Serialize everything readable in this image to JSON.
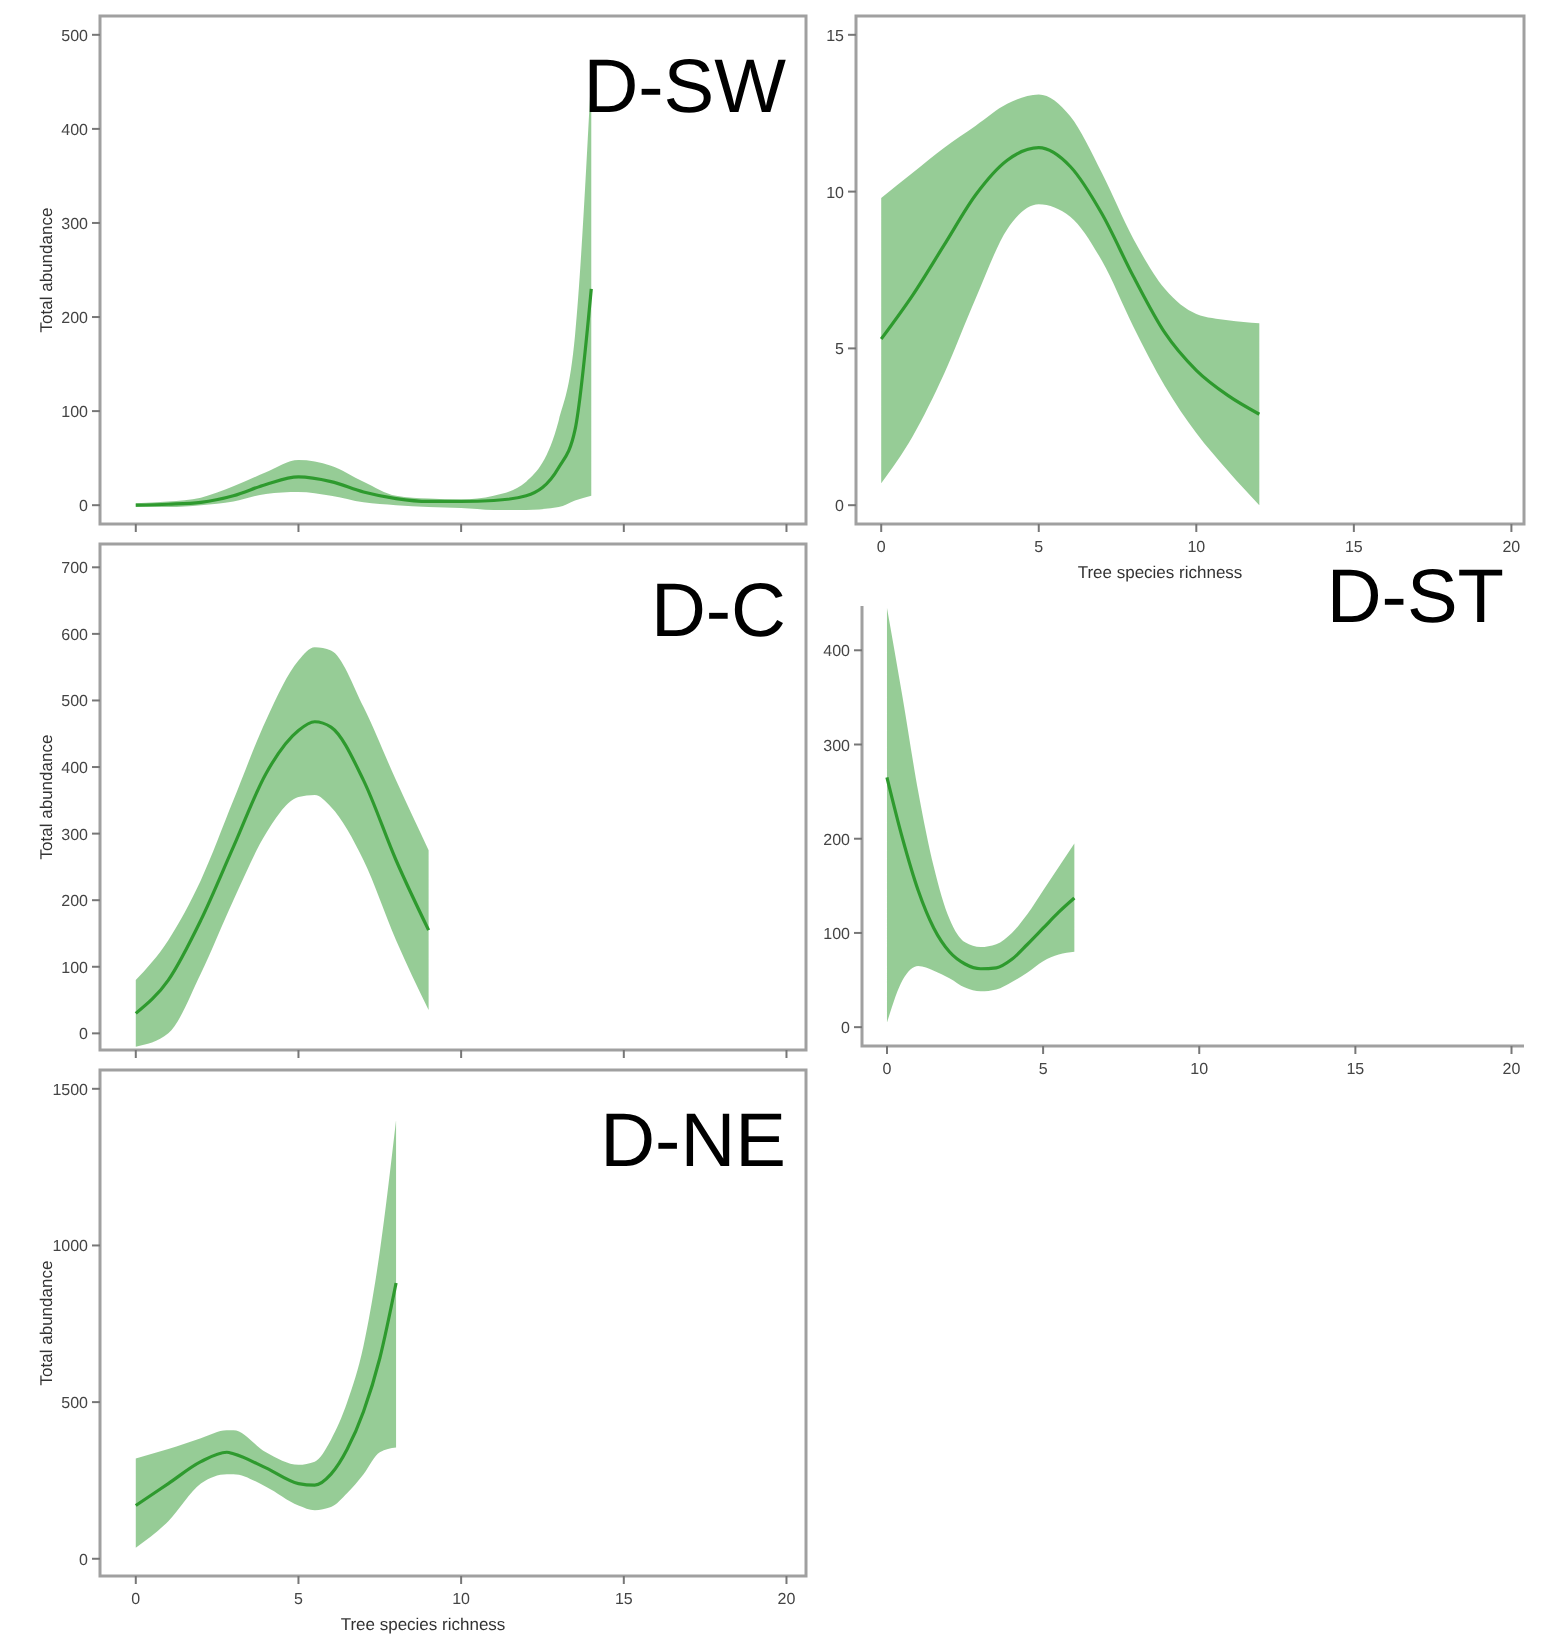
{
  "chart_data": [
    {
      "type": "line",
      "title": "D-SW",
      "ylabel": "Total abundance",
      "xlim": [
        -1.1,
        20.6
      ],
      "ylim": [
        -20,
        520
      ],
      "xticks": [
        {
          "value": 0,
          "label": null
        },
        {
          "value": 5,
          "label": null
        },
        {
          "value": 10,
          "label": null
        },
        {
          "value": 15,
          "label": null
        },
        {
          "value": 20,
          "label": null
        }
      ],
      "yticks": [
        0,
        100,
        200,
        300,
        400,
        500
      ],
      "tick_labels": "y",
      "grid": false,
      "series": [
        {
          "color": "#2e9a2e",
          "x": [
            0,
            1,
            2,
            3,
            4,
            5,
            6,
            7,
            8,
            9,
            10,
            11,
            12,
            13,
            13.5,
            14
          ],
          "values": [
            0,
            1,
            3,
            10,
            22,
            30,
            25,
            14,
            7,
            4,
            4,
            5,
            10,
            40,
            80,
            230
          ],
          "upper": [
            2,
            4,
            8,
            20,
            35,
            48,
            42,
            25,
            10,
            7,
            6,
            10,
            25,
            90,
            180,
            460
          ],
          "lower": [
            -2,
            -2,
            0,
            4,
            12,
            14,
            10,
            3,
            0,
            -2,
            -3,
            -5,
            -5,
            -2,
            5,
            10
          ]
        }
      ]
    },
    {
      "type": "line",
      "xlabel": "Tree species richness",
      "xlim": [
        -0.8,
        20.4
      ],
      "ylim": [
        -0.6,
        15.6
      ],
      "xticks": [
        0,
        5,
        10,
        15,
        20
      ],
      "yticks": [
        0,
        5,
        10,
        15
      ],
      "grid": false,
      "series": [
        {
          "color": "#2e9a2e",
          "x": [
            0,
            1,
            2,
            3,
            4,
            5,
            6,
            7,
            8,
            9,
            10,
            11,
            12
          ],
          "values": [
            5.3,
            6.7,
            8.3,
            9.9,
            11.0,
            11.4,
            10.8,
            9.3,
            7.3,
            5.5,
            4.3,
            3.5,
            2.9
          ],
          "upper": [
            9.8,
            10.6,
            11.4,
            12.1,
            12.8,
            13.1,
            12.4,
            10.6,
            8.5,
            6.9,
            6.1,
            5.9,
            5.8
          ],
          "lower": [
            0.7,
            2.2,
            4.2,
            6.6,
            8.8,
            9.6,
            9.2,
            7.8,
            5.7,
            3.8,
            2.3,
            1.1,
            0
          ]
        }
      ]
    },
    {
      "type": "line",
      "title": "D-C",
      "ylabel": "Total abundance",
      "xlim": [
        -1.1,
        20.6
      ],
      "ylim": [
        -25,
        735
      ],
      "xticks": [
        {
          "value": 0,
          "label": null
        },
        {
          "value": 5,
          "label": null
        },
        {
          "value": 10,
          "label": null
        },
        {
          "value": 15,
          "label": null
        },
        {
          "value": 20,
          "label": null
        }
      ],
      "yticks": [
        0,
        100,
        200,
        300,
        400,
        500,
        600,
        700
      ],
      "tick_labels": "y",
      "grid": false,
      "series": [
        {
          "color": "#2e9a2e",
          "x": [
            0,
            1,
            2,
            3,
            4,
            5,
            5.5,
            6,
            7,
            8,
            9
          ],
          "values": [
            30,
            80,
            170,
            280,
            390,
            455,
            468,
            460,
            380,
            260,
            155
          ],
          "upper": [
            80,
            140,
            230,
            350,
            470,
            560,
            580,
            575,
            490,
            380,
            275
          ],
          "lower": [
            -20,
            0,
            90,
            200,
            300,
            355,
            358,
            340,
            260,
            140,
            35
          ]
        }
      ]
    },
    {
      "type": "line",
      "title": "D-ST",
      "xlim": [
        -0.8,
        20.4
      ],
      "ylim": [
        -20,
        447
      ],
      "xticks": [
        0,
        5,
        10,
        15,
        20
      ],
      "yticks": [
        0,
        100,
        200,
        300,
        400
      ],
      "grid": false,
      "series": [
        {
          "color": "#2e9a2e",
          "x": [
            0,
            0.5,
            1,
            1.5,
            2,
            2.5,
            3,
            3.5,
            4,
            4.5,
            5,
            5.5,
            6
          ],
          "values": [
            265,
            200,
            145,
            105,
            80,
            67,
            62,
            63,
            72,
            88,
            105,
            122,
            137
          ],
          "upper": [
            445,
            350,
            250,
            170,
            115,
            90,
            85,
            88,
            100,
            120,
            145,
            170,
            195
          ],
          "lower": [
            5,
            50,
            65,
            60,
            52,
            42,
            38,
            40,
            48,
            58,
            70,
            77,
            80
          ]
        }
      ]
    },
    {
      "type": "line",
      "title": "D-NE",
      "xlabel": "Tree species richness",
      "ylabel": "Total abundance",
      "xlim": [
        -1.1,
        20.6
      ],
      "ylim": [
        -55,
        1560
      ],
      "xticks": [
        0,
        5,
        10,
        15,
        20
      ],
      "yticks": [
        0,
        500,
        1000,
        1500
      ],
      "grid": false,
      "series": [
        {
          "color": "#2e9a2e",
          "x": [
            0,
            1,
            2,
            2.8,
            3,
            4,
            5,
            5.5,
            6,
            6.5,
            7,
            7.5,
            8
          ],
          "values": [
            170,
            240,
            310,
            340,
            335,
            290,
            240,
            235,
            270,
            350,
            470,
            640,
            880
          ],
          "upper": [
            320,
            350,
            385,
            410,
            410,
            340,
            300,
            310,
            380,
            500,
            680,
            980,
            1400
          ],
          "lower": [
            35,
            120,
            240,
            270,
            270,
            230,
            170,
            155,
            165,
            210,
            270,
            340,
            355
          ]
        }
      ]
    }
  ]
}
